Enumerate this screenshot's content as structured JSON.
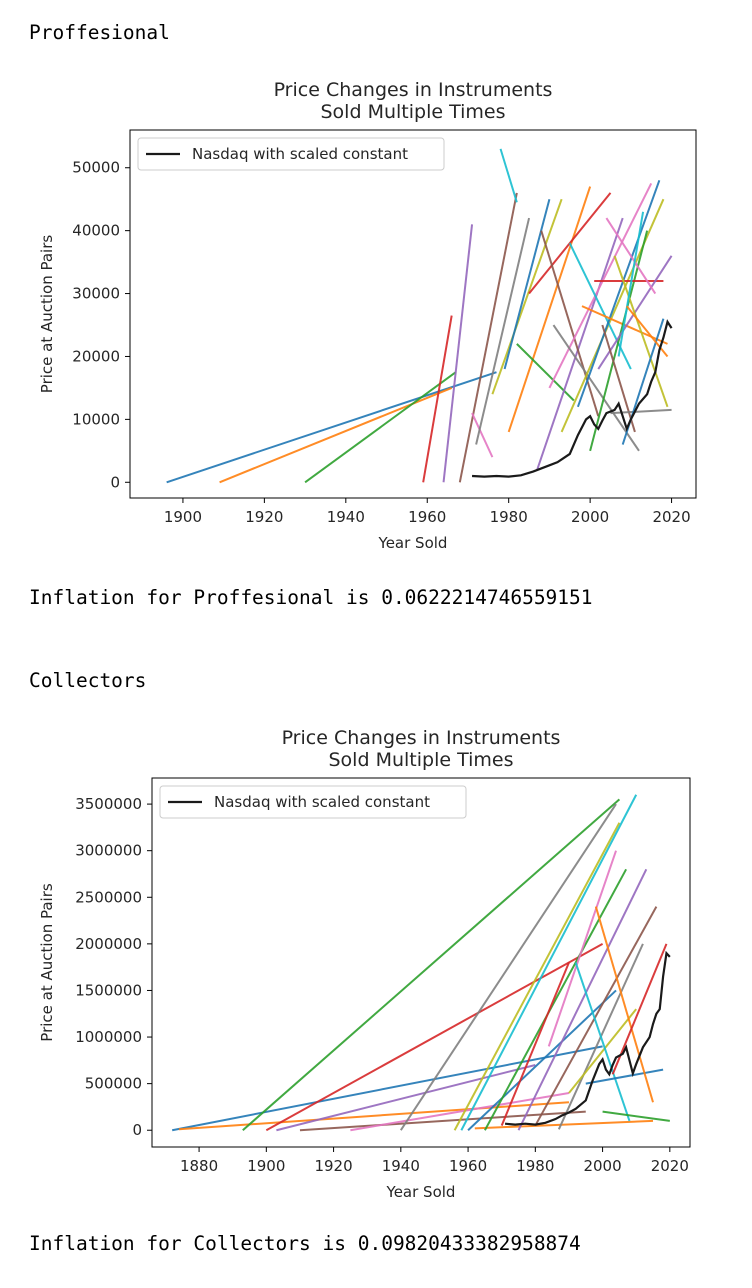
{
  "output_lines": {
    "section1": "Proffesional",
    "inflation1": "Inflation for Proffesional is 0.0622214746559151",
    "section2": "Collectors",
    "inflation2": "Inflation for Collectors is 0.09820433382958874"
  },
  "colors": {
    "nasdaq": "#1a1a1a",
    "palette": [
      "#1f77b4",
      "#ff7f0e",
      "#2ca02c",
      "#d62728",
      "#9467bd",
      "#8c564b",
      "#e377c2",
      "#7f7f7f",
      "#bcbd22",
      "#17becf"
    ]
  },
  "chart_data": [
    {
      "type": "line",
      "title": [
        "Price Changes in Instruments",
        "Sold Multiple Times"
      ],
      "xlabel": "Year Sold",
      "ylabel": "Price at Auction Pairs",
      "xlim": [
        1887,
        2026
      ],
      "ylim": [
        -2500,
        56000
      ],
      "xticks": [
        1900,
        1920,
        1940,
        1960,
        1980,
        2000,
        2020
      ],
      "yticks": [
        0,
        10000,
        20000,
        30000,
        40000,
        50000
      ],
      "legend": {
        "label": "Nasdaq with scaled constant",
        "position": "upper-left"
      },
      "nasdaq": {
        "name": "Nasdaq with scaled constant",
        "x": [
          1971,
          1974,
          1977,
          1980,
          1983,
          1986,
          1988,
          1990,
          1992,
          1995,
          1997,
          1999,
          2000,
          2001,
          2002,
          2003,
          2004,
          2006,
          2007,
          2008,
          2009,
          2010,
          2012,
          2014,
          2015,
          2016,
          2017,
          2018,
          2019,
          2020
        ],
        "y": [
          1000,
          900,
          1000,
          900,
          1100,
          1700,
          2200,
          2700,
          3200,
          4500,
          7500,
          10000,
          10500,
          9200,
          8500,
          9800,
          11000,
          11500,
          12500,
          10500,
          8500,
          10000,
          12500,
          14000,
          16000,
          17500,
          21000,
          23000,
          25500,
          24500
        ]
      },
      "pairs": [
        [
          1896,
          0,
          1977,
          17500
        ],
        [
          1909,
          0,
          1966,
          15000
        ],
        [
          1930,
          0,
          1967,
          17500
        ],
        [
          1959,
          0,
          1966,
          26500
        ],
        [
          1964,
          0,
          1971,
          41000
        ],
        [
          1968,
          0,
          1982,
          46000
        ],
        [
          1971,
          11000,
          1976,
          4000
        ],
        [
          1972,
          6000,
          1985,
          42000
        ],
        [
          1976,
          14000,
          1993,
          45000
        ],
        [
          1978,
          53000,
          1982,
          44500
        ],
        [
          1979,
          18000,
          1990,
          45000
        ],
        [
          1980,
          8000,
          2000,
          47000
        ],
        [
          1982,
          22000,
          1996,
          13000
        ],
        [
          1985,
          30000,
          2005,
          46000
        ],
        [
          1987,
          2000,
          2008,
          42000
        ],
        [
          1988,
          40000,
          2002,
          10500
        ],
        [
          1990,
          15000,
          2015,
          47500
        ],
        [
          1991,
          25000,
          2012,
          5000
        ],
        [
          1993,
          8000,
          2018,
          45000
        ],
        [
          1995,
          38000,
          2010,
          18000
        ],
        [
          1997,
          12000,
          2017,
          48000
        ],
        [
          1998,
          28000,
          2019,
          22000
        ],
        [
          2000,
          5000,
          2014,
          40000
        ],
        [
          2001,
          32000,
          2018,
          32000
        ],
        [
          2002,
          18000,
          2020,
          36000
        ],
        [
          2003,
          25000,
          2011,
          8000
        ],
        [
          2004,
          42000,
          2016,
          30000
        ],
        [
          2005,
          11000,
          2020,
          11500
        ],
        [
          2006,
          36000,
          2019,
          12000
        ],
        [
          2007,
          20000,
          2013,
          43000
        ],
        [
          2008,
          6000,
          2018,
          26000
        ],
        [
          2009,
          28000,
          2019,
          20000
        ]
      ]
    },
    {
      "type": "line",
      "title": [
        "Price Changes in Instruments",
        "Sold Multiple Times"
      ],
      "xlabel": "Year Sold",
      "ylabel": "Price at Auction Pairs",
      "xlim": [
        1866,
        2026
      ],
      "ylim": [
        -180000,
        3780000
      ],
      "xticks": [
        1880,
        1900,
        1920,
        1940,
        1960,
        1980,
        2000,
        2020
      ],
      "yticks": [
        0,
        500000,
        1000000,
        1500000,
        2000000,
        2500000,
        3000000,
        3500000
      ],
      "legend": {
        "label": "Nasdaq with scaled constant",
        "position": "upper-left"
      },
      "nasdaq": {
        "name": "Nasdaq with scaled constant",
        "x": [
          1971,
          1974,
          1977,
          1980,
          1983,
          1986,
          1988,
          1990,
          1992,
          1995,
          1997,
          1999,
          2000,
          2001,
          2002,
          2003,
          2004,
          2006,
          2007,
          2008,
          2009,
          2010,
          2012,
          2014,
          2015,
          2016,
          2017,
          2018,
          2019,
          2020
        ],
        "y": [
          70000,
          60000,
          70000,
          60000,
          80000,
          120000,
          160000,
          190000,
          230000,
          320000,
          530000,
          710000,
          760000,
          650000,
          600000,
          700000,
          780000,
          820000,
          890000,
          750000,
          610000,
          710000,
          890000,
          1000000,
          1140000,
          1250000,
          1300000,
          1650000,
          1900000,
          1860000
        ]
      },
      "pairs": [
        [
          1872,
          0,
          2000,
          900000
        ],
        [
          1874,
          10000,
          1990,
          300000
        ],
        [
          1893,
          0,
          2005,
          3550000
        ],
        [
          1900,
          0,
          2000,
          2000000
        ],
        [
          1903,
          0,
          1980,
          700000
        ],
        [
          1910,
          0,
          1995,
          200000
        ],
        [
          1925,
          0,
          1990,
          400000
        ],
        [
          1940,
          0,
          2004,
          3500000
        ],
        [
          1956,
          0,
          2005,
          3300000
        ],
        [
          1958,
          0,
          2010,
          3600000
        ],
        [
          1960,
          0,
          2004,
          1500000
        ],
        [
          1962,
          20000,
          2015,
          100000
        ],
        [
          1965,
          0,
          2007,
          2800000
        ],
        [
          1970,
          50000,
          1990,
          1800000
        ],
        [
          1975,
          0,
          2013,
          2800000
        ],
        [
          1980,
          50000,
          2016,
          2400000
        ],
        [
          1984,
          900000,
          2004,
          3000000
        ],
        [
          1987,
          10000,
          2012,
          2000000
        ],
        [
          1990,
          400000,
          2010,
          1300000
        ],
        [
          1992,
          1800000,
          2008,
          100000
        ],
        [
          1995,
          500000,
          2018,
          650000
        ],
        [
          1998,
          2400000,
          2015,
          300000
        ],
        [
          2000,
          200000,
          2020,
          100000
        ],
        [
          2003,
          600000,
          2019,
          2000000
        ]
      ]
    }
  ]
}
